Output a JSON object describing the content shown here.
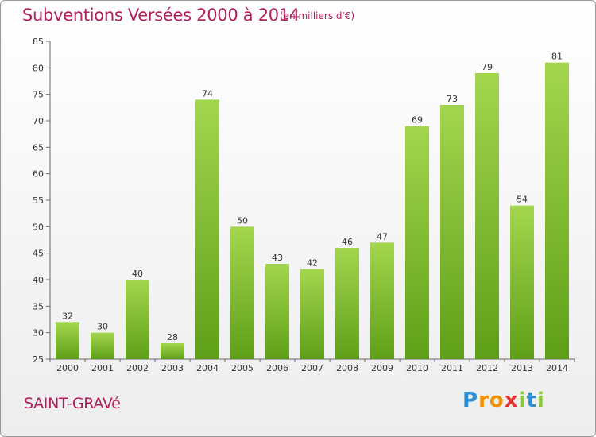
{
  "title": "Subventions Versées 2000 à 2014",
  "subtitle": "(en milliers d'€)",
  "commune": "SAINT-GRAVé",
  "logo": {
    "text": "Proxiti",
    "letters": [
      {
        "ch": "P",
        "color": "#2b8fd1"
      },
      {
        "ch": "r",
        "color": "#f39200"
      },
      {
        "ch": "o",
        "color": "#f39200"
      },
      {
        "ch": "x",
        "color": "#e5312b"
      },
      {
        "ch": "i",
        "color": "#8cc63f"
      },
      {
        "ch": "t",
        "color": "#2b8fd1"
      },
      {
        "ch": "i",
        "color": "#8cc63f"
      }
    ]
  },
  "colors": {
    "title": "#b01e5c",
    "bar_light": "#9fd24a",
    "bar_dark": "#5d9e16",
    "axis": "#666666"
  },
  "chart_data": {
    "type": "bar",
    "title": "Subventions Versées 2000 à 2014",
    "subtitle": "(en milliers d'€)",
    "categories": [
      "2000",
      "2001",
      "2002",
      "2003",
      "2004",
      "2005",
      "2006",
      "2007",
      "2008",
      "2009",
      "2010",
      "2011",
      "2012",
      "2013",
      "2014"
    ],
    "values": [
      32,
      30,
      40,
      28,
      74,
      50,
      43,
      42,
      46,
      47,
      69,
      73,
      79,
      54,
      81
    ],
    "ylim": [
      25,
      85
    ],
    "yticks": [
      25,
      30,
      35,
      40,
      45,
      50,
      55,
      60,
      65,
      70,
      75,
      80,
      85
    ],
    "grid": false,
    "xlabel": "",
    "ylabel": ""
  }
}
